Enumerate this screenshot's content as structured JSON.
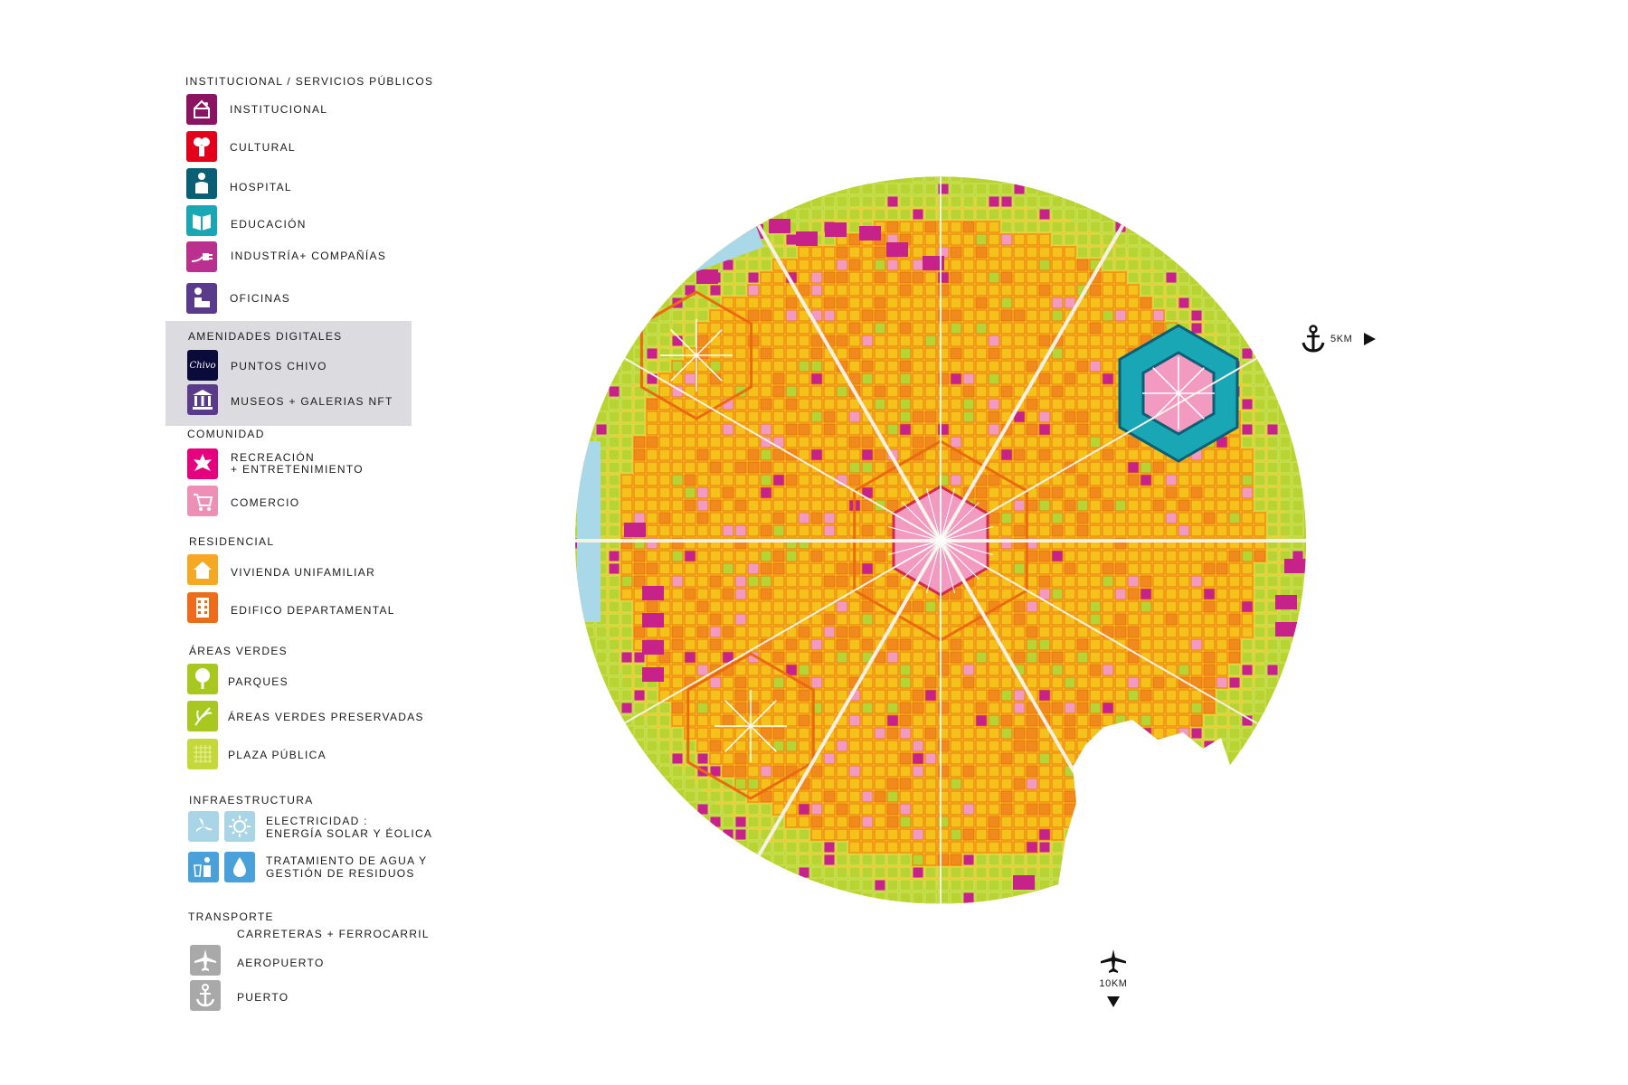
{
  "legend": {
    "institucional": {
      "heading": "INSTITUCIONAL / SERVICIOS PÚBLICOS",
      "items": [
        {
          "label": "INSTITUCIONAL",
          "icon": "institution-icon",
          "color": "#8a1462"
        },
        {
          "label": "CULTURAL",
          "icon": "theater-masks-icon",
          "color": "#e3001b"
        },
        {
          "label": "HOSPITAL",
          "icon": "doctor-icon",
          "color": "#0b5f75"
        },
        {
          "label": "EDUCACIÓN",
          "icon": "book-icon",
          "color": "#1aa7b5"
        },
        {
          "label": "INDUSTRÍA+ COMPAÑÍAS",
          "icon": "plug-icon",
          "color": "#b9308f"
        },
        {
          "label": "OFICINAS",
          "icon": "office-worker-icon",
          "color": "#5a3a8a"
        }
      ]
    },
    "amenidades": {
      "heading": "AMENIDADES DIGITALES",
      "items": [
        {
          "label": "PUNTOS CHIVO",
          "icon": "chivo-wallet-icon",
          "icon_text": "Chivo",
          "color": "#0b0b3b"
        },
        {
          "label": "MUSEOS + GALERIAS NFT",
          "icon": "museum-icon",
          "color": "#5a3a8a"
        }
      ]
    },
    "comunidad": {
      "heading": "COMUNIDAD",
      "items": [
        {
          "label": "RECREACIÓN",
          "label2": "+ ENTRETENIMIENTO",
          "icon": "recreation-icon",
          "color": "#e6007e"
        },
        {
          "label": "COMERCIO",
          "icon": "shopping-cart-icon",
          "color": "#ee8fb6"
        }
      ]
    },
    "residencial": {
      "heading": "RESIDENCIAL",
      "items": [
        {
          "label": "VIVIENDA UNIFAMILIAR",
          "icon": "house-icon",
          "color": "#f7a823"
        },
        {
          "label": "EDIFICO DEPARTAMENTAL",
          "icon": "apartment-building-icon",
          "color": "#f06a1a"
        }
      ]
    },
    "verdes": {
      "heading": "ÁREAS VERDES",
      "items": [
        {
          "label": "PARQUES",
          "icon": "tree-icon",
          "color": "#a8c81f"
        },
        {
          "label": "ÁREAS VERDES PRESERVADAS",
          "icon": "leaf-sprout-icon",
          "color": "#a8c81f"
        },
        {
          "label": "PLAZA PÚBLICA",
          "icon": "plaza-grid-icon",
          "color": "#c4d83a"
        }
      ]
    },
    "infraestructura": {
      "heading": "INFRAESTRUCTURA",
      "items": [
        {
          "label": "ELECTRICIDAD :",
          "label2": "ENERGÍA SOLAR Y ÉOLICA",
          "icon": "wind-turbine-icon",
          "icon2": "sun-icon",
          "color": "#a9d5e6"
        },
        {
          "label": "TRATAMIENTO DE AGUA Y",
          "label2": "GESTIÓN DE RESIDUOS",
          "icon": "recycling-icon",
          "icon2": "water-drop-icon",
          "color": "#4aa0d8"
        }
      ]
    },
    "transporte": {
      "heading": "TRANSPORTE",
      "sub": "CARRETERAS + FERROCARRIL",
      "items": [
        {
          "label": "AEROPUERTO",
          "icon": "airplane-icon",
          "color": "#a9a9a9"
        },
        {
          "label": "PUERTO",
          "icon": "anchor-icon",
          "color": "#a9a9a9"
        }
      ]
    }
  },
  "markers": {
    "port": {
      "label": "5KM",
      "icon": "anchor-icon",
      "arrow": "arrow-right-icon"
    },
    "airport": {
      "label": "10KM",
      "icon": "airplane-icon",
      "arrow": "arrow-down-icon"
    }
  },
  "map": {
    "colors": {
      "base": "#f5c21c",
      "block_outline": "#eb6a10",
      "residential_block": "#f08a1c",
      "green": "#b8d433",
      "industry": "#c7228a",
      "commerce": "#f29ac0",
      "water": "#a9d8e8",
      "teal": "#1aa7b5",
      "hospital": "#0b5f75",
      "roads": "#f7f0e4",
      "center": "#d12a4a"
    }
  }
}
